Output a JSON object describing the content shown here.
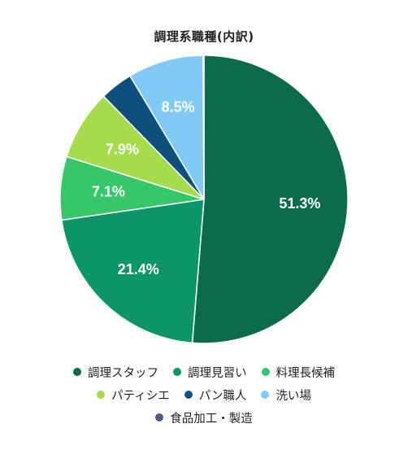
{
  "chart_data": {
    "type": "pie",
    "title": "調理系職種(内訳)",
    "slices": [
      {
        "label": "調理スタッフ",
        "value": 51.3,
        "data_label": "51.3%",
        "color": "#0b6b4c"
      },
      {
        "label": "調理見習い",
        "value": 21.4,
        "data_label": "21.4%",
        "color": "#0c9566"
      },
      {
        "label": "料理長候補",
        "value": 7.1,
        "data_label": "7.1%",
        "color": "#36c76a"
      },
      {
        "label": "パティシエ",
        "value": 7.9,
        "data_label": "7.9%",
        "color": "#a6db4c"
      },
      {
        "label": "パン職人",
        "value": 3.7,
        "data_label": "",
        "color": "#0f4f7d"
      },
      {
        "label": "洗い場",
        "value": 8.5,
        "data_label": "8.5%",
        "color": "#80caf5"
      },
      {
        "label": "食品加工・製造",
        "value": 0.1,
        "data_label": "",
        "color": "#505a83"
      }
    ],
    "legend_position": "bottom",
    "legend_rows": [
      [
        "調理スタッフ",
        "調理見習い",
        "料理長候補"
      ],
      [
        "パティシエ",
        "パン職人",
        "洗い場"
      ],
      [
        "食品加工・製造"
      ]
    ]
  }
}
